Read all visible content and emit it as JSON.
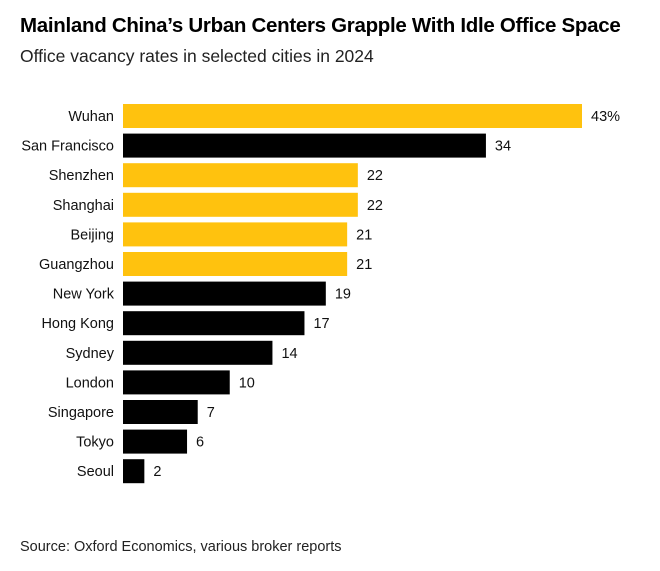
{
  "header": {
    "title": "Mainland China’s Urban Centers Grapple With Idle Office Space",
    "subtitle": "Office vacancy rates in selected cities in 2024"
  },
  "footer": {
    "source": "Source: Oxford Economics, various broker reports"
  },
  "chart_data": {
    "type": "bar",
    "orientation": "horizontal",
    "categories": [
      "Wuhan",
      "San Francisco",
      "Shenzhen",
      "Shanghai",
      "Beijing",
      "Guangzhou",
      "New York",
      "Hong Kong",
      "Sydney",
      "London",
      "Singapore",
      "Tokyo",
      "Seoul"
    ],
    "values": [
      43,
      34,
      22,
      22,
      21,
      21,
      19,
      17,
      14,
      10,
      7,
      6,
      2
    ],
    "value_labels": [
      "43%",
      "34",
      "22",
      "22",
      "21",
      "21",
      "19",
      "17",
      "14",
      "10",
      "7",
      "6",
      "2"
    ],
    "highlight": [
      true,
      false,
      true,
      true,
      true,
      true,
      false,
      false,
      false,
      false,
      false,
      false,
      false
    ],
    "colors": {
      "highlight": "#ffc20e",
      "default": "#000000"
    },
    "xlim": [
      0,
      43
    ],
    "grid": false,
    "legend": "none"
  }
}
